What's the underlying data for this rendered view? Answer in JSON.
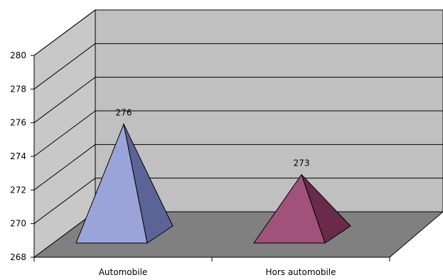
{
  "chart_data": {
    "type": "bar",
    "style": "3d-pyramid",
    "categories": [
      "Automobile",
      "Hors automobile"
    ],
    "series": [
      {
        "values": [
          276,
          273
        ]
      }
    ],
    "data_labels": [
      "276",
      "273"
    ],
    "ylim": [
      268,
      280
    ],
    "yticks": [
      "268",
      "270",
      "272",
      "274",
      "276",
      "278",
      "280"
    ],
    "grid": true,
    "legend": "none",
    "colors": {
      "wall": "#c0c0c0",
      "side_wall": "#c8c8c8",
      "floor": "#808080",
      "pyramid_1_front": "#9aa4d8",
      "pyramid_1_side": "#5a6496",
      "pyramid_2_front": "#a0527a",
      "pyramid_2_side": "#6a2a4a"
    }
  }
}
